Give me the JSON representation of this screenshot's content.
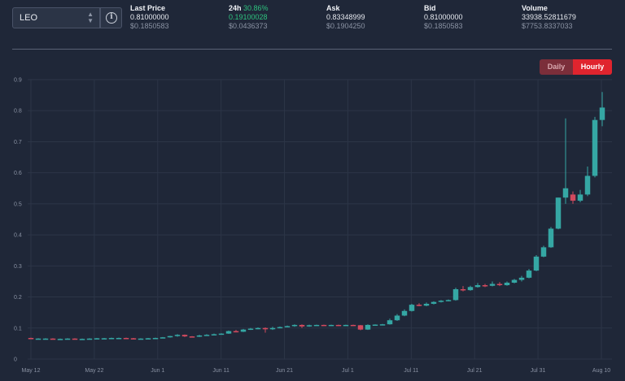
{
  "symbol": {
    "value": "LEO",
    "chevron_icon": "updown-chevron-icon",
    "info_icon": "info-icon"
  },
  "stats": {
    "last_price": {
      "label": "Last Price",
      "value": "0.81000000",
      "usd": "$0.1850583"
    },
    "change_24h": {
      "label": "24h",
      "percent": "30.86%",
      "value": "0.19100028",
      "usd": "$0.0436373"
    },
    "ask": {
      "label": "Ask",
      "value": "0.83348999",
      "usd": "$0.1904250"
    },
    "bid": {
      "label": "Bid",
      "value": "0.81000000",
      "usd": "$0.1850583"
    },
    "volume": {
      "label": "Volume",
      "value": "33938.52811679",
      "usd": "$7753.8337033"
    }
  },
  "interval": {
    "daily_label": "Daily",
    "hourly_label": "Hourly",
    "selected": "Hourly"
  },
  "colors": {
    "up": "#35a7a4",
    "down": "#d24a5e",
    "grid": "#2c3547",
    "accent": "#e0242e"
  },
  "chart_data": {
    "type": "candlestick",
    "ylim": [
      0,
      0.9
    ],
    "yticks": [
      "0",
      "0.1",
      "0.2",
      "0.3",
      "0.4",
      "0.5",
      "0.6",
      "0.7",
      "0.8",
      "0.9"
    ],
    "xticks": [
      "May 12",
      "May 22",
      "Jun 1",
      "Jun 11",
      "Jun 21",
      "Jul 1",
      "Jul 11",
      "Jul 21",
      "Jul 31",
      "Aug 10"
    ],
    "grid": true,
    "candles": [
      [
        0.068,
        0.066,
        0.069,
        0.065
      ],
      [
        0.066,
        0.066,
        0.067,
        0.065
      ],
      [
        0.066,
        0.066,
        0.067,
        0.065
      ],
      [
        0.066,
        0.065,
        0.067,
        0.064
      ],
      [
        0.065,
        0.065,
        0.066,
        0.064
      ],
      [
        0.065,
        0.066,
        0.067,
        0.064
      ],
      [
        0.066,
        0.065,
        0.067,
        0.064
      ],
      [
        0.065,
        0.065,
        0.066,
        0.064
      ],
      [
        0.065,
        0.066,
        0.067,
        0.064
      ],
      [
        0.066,
        0.067,
        0.068,
        0.065
      ],
      [
        0.067,
        0.067,
        0.068,
        0.066
      ],
      [
        0.067,
        0.068,
        0.069,
        0.066
      ],
      [
        0.068,
        0.068,
        0.069,
        0.067
      ],
      [
        0.068,
        0.067,
        0.069,
        0.066
      ],
      [
        0.067,
        0.066,
        0.068,
        0.065
      ],
      [
        0.066,
        0.066,
        0.067,
        0.065
      ],
      [
        0.066,
        0.067,
        0.068,
        0.065
      ],
      [
        0.067,
        0.068,
        0.069,
        0.066
      ],
      [
        0.068,
        0.07,
        0.071,
        0.067
      ],
      [
        0.07,
        0.074,
        0.075,
        0.069
      ],
      [
        0.074,
        0.078,
        0.08,
        0.072
      ],
      [
        0.078,
        0.073,
        0.079,
        0.071
      ],
      [
        0.073,
        0.072,
        0.074,
        0.07
      ],
      [
        0.072,
        0.076,
        0.078,
        0.071
      ],
      [
        0.076,
        0.078,
        0.08,
        0.075
      ],
      [
        0.078,
        0.08,
        0.082,
        0.077
      ],
      [
        0.08,
        0.082,
        0.083,
        0.079
      ],
      [
        0.082,
        0.09,
        0.092,
        0.081
      ],
      [
        0.09,
        0.088,
        0.094,
        0.086
      ],
      [
        0.088,
        0.095,
        0.097,
        0.087
      ],
      [
        0.095,
        0.098,
        0.1,
        0.094
      ],
      [
        0.098,
        0.1,
        0.102,
        0.096
      ],
      [
        0.1,
        0.096,
        0.102,
        0.085
      ],
      [
        0.096,
        0.1,
        0.104,
        0.094
      ],
      [
        0.1,
        0.103,
        0.105,
        0.099
      ],
      [
        0.103,
        0.106,
        0.108,
        0.102
      ],
      [
        0.106,
        0.11,
        0.112,
        0.104
      ],
      [
        0.11,
        0.105,
        0.112,
        0.1
      ],
      [
        0.105,
        0.109,
        0.111,
        0.104
      ],
      [
        0.109,
        0.11,
        0.111,
        0.108
      ],
      [
        0.11,
        0.109,
        0.111,
        0.108
      ],
      [
        0.109,
        0.11,
        0.111,
        0.108
      ],
      [
        0.11,
        0.108,
        0.111,
        0.107
      ],
      [
        0.108,
        0.11,
        0.111,
        0.107
      ],
      [
        0.11,
        0.109,
        0.111,
        0.108
      ],
      [
        0.109,
        0.095,
        0.11,
        0.093
      ],
      [
        0.095,
        0.11,
        0.112,
        0.094
      ],
      [
        0.11,
        0.111,
        0.112,
        0.109
      ],
      [
        0.111,
        0.112,
        0.113,
        0.11
      ],
      [
        0.112,
        0.125,
        0.13,
        0.111
      ],
      [
        0.125,
        0.14,
        0.145,
        0.123
      ],
      [
        0.14,
        0.155,
        0.16,
        0.138
      ],
      [
        0.155,
        0.175,
        0.178,
        0.153
      ],
      [
        0.175,
        0.172,
        0.18,
        0.17
      ],
      [
        0.172,
        0.178,
        0.182,
        0.17
      ],
      [
        0.178,
        0.184,
        0.186,
        0.176
      ],
      [
        0.184,
        0.188,
        0.19,
        0.182
      ],
      [
        0.188,
        0.19,
        0.192,
        0.186
      ],
      [
        0.19,
        0.225,
        0.23,
        0.188
      ],
      [
        0.225,
        0.222,
        0.235,
        0.218
      ],
      [
        0.222,
        0.232,
        0.236,
        0.22
      ],
      [
        0.232,
        0.238,
        0.245,
        0.23
      ],
      [
        0.238,
        0.236,
        0.242,
        0.232
      ],
      [
        0.236,
        0.242,
        0.25,
        0.234
      ],
      [
        0.242,
        0.238,
        0.248,
        0.235
      ],
      [
        0.238,
        0.246,
        0.25,
        0.236
      ],
      [
        0.246,
        0.255,
        0.258,
        0.244
      ],
      [
        0.255,
        0.262,
        0.268,
        0.25
      ],
      [
        0.262,
        0.285,
        0.29,
        0.26
      ],
      [
        0.285,
        0.33,
        0.335,
        0.283
      ],
      [
        0.33,
        0.36,
        0.365,
        0.328
      ],
      [
        0.36,
        0.42,
        0.425,
        0.358
      ],
      [
        0.42,
        0.52,
        0.52,
        0.418
      ],
      [
        0.52,
        0.55,
        0.775,
        0.5
      ],
      [
        0.53,
        0.51,
        0.54,
        0.5
      ],
      [
        0.51,
        0.53,
        0.545,
        0.505
      ],
      [
        0.53,
        0.59,
        0.62,
        0.525
      ],
      [
        0.59,
        0.77,
        0.78,
        0.585
      ],
      [
        0.77,
        0.81,
        0.86,
        0.75
      ]
    ]
  }
}
